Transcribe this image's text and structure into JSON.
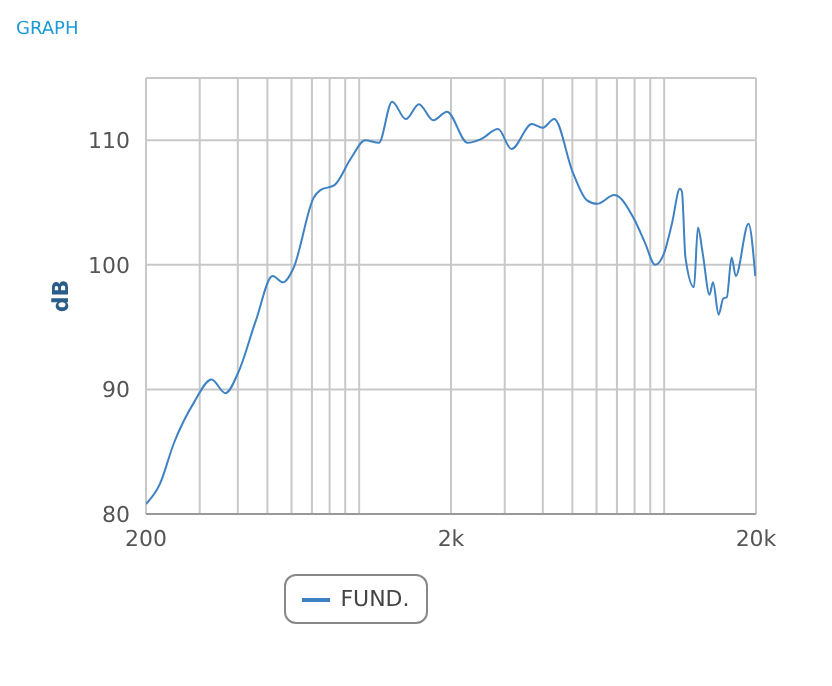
{
  "chart_data": {
    "type": "line",
    "title": "GRAPH",
    "ylabel": "dB",
    "x": [
      200,
      222,
      247,
      288,
      328,
      364,
      402,
      458,
      520,
      563,
      608,
      710,
      746,
      830,
      942,
      1046,
      1160,
      1282,
      1422,
      1570,
      1750,
      1940,
      2266,
      2510,
      2854,
      3158,
      3682,
      3990,
      4360,
      5020,
      5570,
      6030,
      6860,
      8000,
      8640,
      9340,
      9980,
      10600,
      11260,
      11430,
      11740,
      12520,
      12900,
      13380,
      14080,
      14460,
      15080,
      15620,
      16040,
      16640,
      17160,
      18900,
      19900
    ],
    "series": [
      {
        "name": "FUND.",
        "color": "#3f82c4",
        "values": [
          80.8,
          82.4,
          85.7,
          89.0,
          90.8,
          89.7,
          91.4,
          95.5,
          99.1,
          98.6,
          99.7,
          105.4,
          106.0,
          106.4,
          108.6,
          110.0,
          109.8,
          113.1,
          111.7,
          112.9,
          111.6,
          112.3,
          109.8,
          110.1,
          110.9,
          109.3,
          111.3,
          111.0,
          111.7,
          107.4,
          105.2,
          104.9,
          105.6,
          103.6,
          101.8,
          100.0,
          100.9,
          103.3,
          106.1,
          105.9,
          100.6,
          98.2,
          103.0,
          100.9,
          97.6,
          98.6,
          96.0,
          97.3,
          97.4,
          100.6,
          99.1,
          103.3,
          99.1
        ]
      }
    ],
    "log": "x",
    "xlim": [
      200,
      20000
    ],
    "xticks": [
      200,
      {
        "value": 300,
        "label": null
      },
      {
        "value": 400,
        "label": null
      },
      {
        "value": 500,
        "label": null
      },
      {
        "value": 600,
        "label": null
      },
      {
        "value": 700,
        "label": null
      },
      {
        "value": 800,
        "label": null
      },
      {
        "value": 900,
        "label": null
      },
      {
        "value": 1000,
        "label": null
      },
      {
        "value": 2000,
        "label": "2k"
      },
      {
        "value": 3000,
        "label": null
      },
      {
        "value": 4000,
        "label": null
      },
      {
        "value": 5000,
        "label": null
      },
      {
        "value": 6000,
        "label": null
      },
      {
        "value": 7000,
        "label": null
      },
      {
        "value": 8000,
        "label": null
      },
      {
        "value": 9000,
        "label": null
      },
      {
        "value": 10000,
        "label": null
      },
      {
        "value": 20000,
        "label": "20k"
      }
    ],
    "ylim": [
      80,
      115
    ],
    "yticks": [
      80,
      90,
      100,
      110
    ],
    "grid": true,
    "legend": "bottom",
    "marker": "none",
    "line_style": "solid"
  }
}
